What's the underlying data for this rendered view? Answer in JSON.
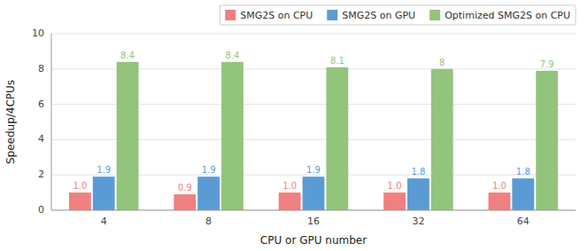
{
  "chart_data": {
    "type": "bar",
    "categories": [
      4,
      8,
      16,
      32,
      64
    ],
    "series": [
      {
        "name": "SMG2S on CPU",
        "color": "#f08080",
        "values": [
          1.0,
          0.9,
          1.0,
          1.0,
          1.0
        ],
        "value_labels": [
          "1.0",
          "0.9",
          "1.0",
          "1.0",
          "1.0"
        ]
      },
      {
        "name": "SMG2S on GPU",
        "color": "#5b9bd5",
        "values": [
          1.9,
          1.9,
          1.9,
          1.8,
          1.8
        ]
      },
      {
        "name": "Optimized SMG2S on CPU",
        "color": "#92c47b",
        "values": [
          8.4,
          8.4,
          8.1,
          8.0,
          7.9
        ]
      }
    ],
    "xlabel": "CPU or GPU number",
    "ylabel": "Speedup/4CPUs",
    "ylim": [
      0,
      10
    ],
    "yticks": [
      0,
      2,
      4,
      6,
      8,
      10
    ],
    "grid": true,
    "legend": "top-right",
    "data_labels": true
  }
}
